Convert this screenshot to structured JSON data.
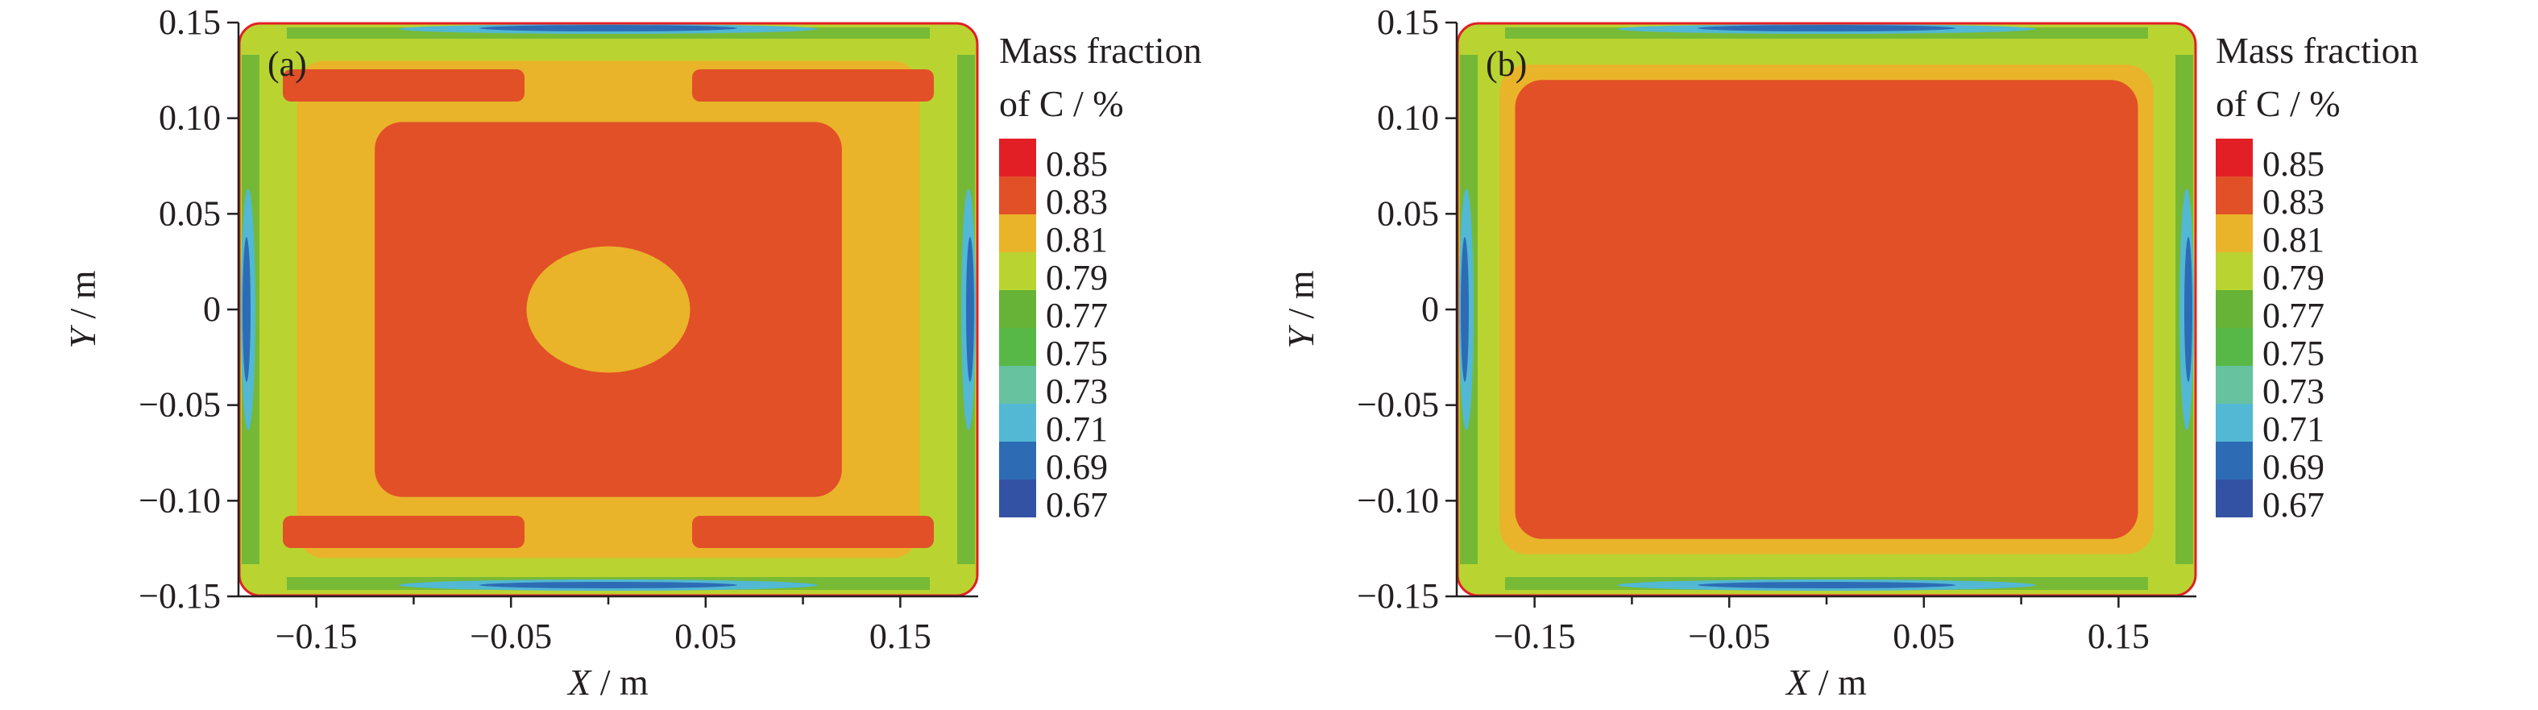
{
  "chart_data": [
    {
      "type": "heatmap",
      "panel_label": "(a)",
      "title": "",
      "xlabel": {
        "var": "X",
        "unit": " / m"
      },
      "ylabel": {
        "var": "Y",
        "unit": " / m"
      },
      "xlim": [
        -0.19,
        0.19
      ],
      "ylim": [
        -0.15,
        0.15
      ],
      "xticks": [
        -0.15,
        -0.05,
        0.05,
        0.15
      ],
      "xtick_labels": [
        "−0.15",
        "−0.05",
        "0.05",
        "0.15"
      ],
      "yticks": [
        0.15,
        0.1,
        0.05,
        0,
        -0.05,
        -0.1,
        -0.15
      ],
      "ytick_labels": [
        "0.15",
        "0.10",
        "0.05",
        "0",
        "−0.05",
        "−0.10",
        "−0.15"
      ],
      "fields": [
        {
          "level": 0.79,
          "x": [
            -0.19,
            0.19
          ],
          "y": [
            -0.15,
            0.15
          ]
        },
        {
          "level": 0.79,
          "x": [
            -0.178,
            0.178
          ],
          "y": [
            -0.138,
            0.138
          ]
        },
        {
          "level": 0.81,
          "x": [
            -0.16,
            0.16
          ],
          "y": [
            -0.13,
            0.13
          ]
        },
        {
          "level": 0.83,
          "x": [
            -0.12,
            0.12
          ],
          "y": [
            -0.098,
            0.098
          ]
        },
        {
          "level": 0.81,
          "x": [
            -0.042,
            0.042
          ],
          "y": [
            -0.033,
            0.033
          ]
        }
      ],
      "legend": {
        "title_lines": [
          "Mass fraction",
          "of C / %"
        ],
        "levels": [
          "0.85",
          "0.83",
          "0.81",
          "0.79",
          "0.77",
          "0.75",
          "0.73",
          "0.71",
          "0.69",
          "0.67"
        ],
        "colors": [
          "#e31f26",
          "#e25027",
          "#e9b42a",
          "#b9d431",
          "#67b337",
          "#58b847",
          "#67c29f",
          "#52b8d3",
          "#2d6cb5",
          "#3452a3"
        ]
      }
    },
    {
      "type": "heatmap",
      "panel_label": "(b)",
      "title": "",
      "xlabel": {
        "var": "X",
        "unit": " / m"
      },
      "ylabel": {
        "var": "Y",
        "unit": " / m"
      },
      "xlim": [
        -0.19,
        0.19
      ],
      "ylim": [
        -0.15,
        0.15
      ],
      "xticks": [
        -0.15,
        -0.05,
        0.05,
        0.15
      ],
      "xtick_labels": [
        "−0.15",
        "−0.05",
        "0.05",
        "0.15"
      ],
      "yticks": [
        0.15,
        0.1,
        0.05,
        0,
        -0.05,
        -0.1,
        -0.15
      ],
      "ytick_labels": [
        "0.15",
        "0.10",
        "0.05",
        "0",
        "−0.05",
        "−0.10",
        "−0.15"
      ],
      "fields": [
        {
          "level": 0.79,
          "x": [
            -0.19,
            0.19
          ],
          "y": [
            -0.15,
            0.15
          ]
        },
        {
          "level": 0.79,
          "x": [
            -0.175,
            0.175
          ],
          "y": [
            -0.14,
            0.14
          ]
        },
        {
          "level": 0.81,
          "x": [
            -0.168,
            0.168
          ],
          "y": [
            -0.128,
            0.128
          ]
        },
        {
          "level": 0.83,
          "x": [
            -0.16,
            0.16
          ],
          "y": [
            -0.12,
            0.12
          ]
        }
      ],
      "legend": {
        "title_lines": [
          "Mass fraction",
          "of C / %"
        ],
        "levels": [
          "0.85",
          "0.83",
          "0.81",
          "0.79",
          "0.77",
          "0.75",
          "0.73",
          "0.71",
          "0.69",
          "0.67"
        ],
        "colors": [
          "#e31f26",
          "#e25027",
          "#e9b42a",
          "#b9d431",
          "#67b337",
          "#58b847",
          "#67c29f",
          "#52b8d3",
          "#2d6cb5",
          "#3452a3"
        ]
      }
    }
  ]
}
